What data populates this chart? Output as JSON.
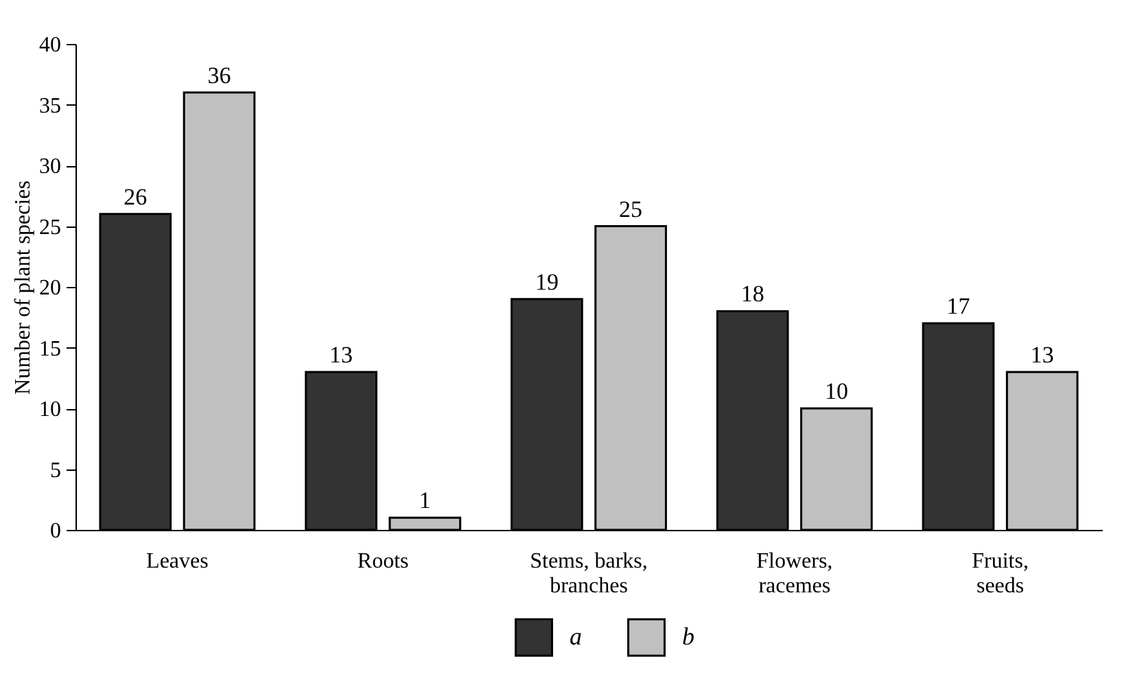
{
  "chart_data": {
    "type": "bar",
    "ylabel": "Number of plant species",
    "categories": [
      "Leaves",
      "Roots",
      "Stems, barks, branches",
      "Flowers, racemes",
      "Fruits, seeds"
    ],
    "series": [
      {
        "name": "a",
        "color": "#333333",
        "values": [
          26,
          13,
          19,
          18,
          17
        ]
      },
      {
        "name": "b",
        "color": "#c0c0c0",
        "values": [
          36,
          1,
          25,
          10,
          13
        ]
      }
    ],
    "ylim": [
      0,
      40
    ],
    "yticks": [
      0,
      5,
      10,
      15,
      20,
      25,
      30,
      35,
      40
    ],
    "data_labels": true,
    "grid": false,
    "legend": "bottom"
  }
}
